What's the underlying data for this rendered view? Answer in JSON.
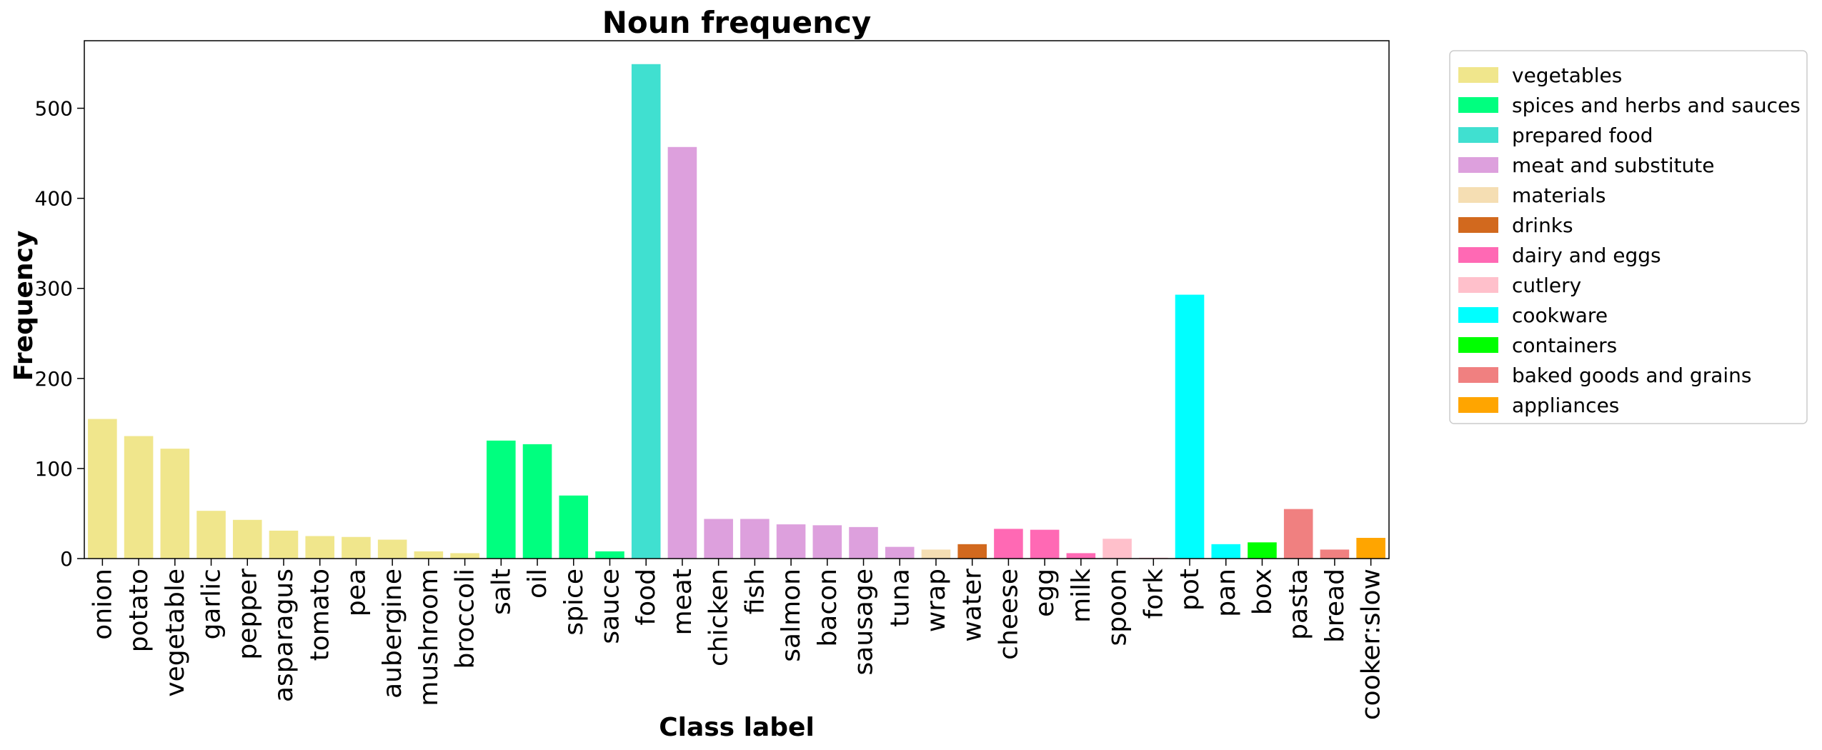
{
  "chart_data": {
    "type": "bar",
    "title": "Noun frequency",
    "xlabel": "Class label",
    "ylabel": "Frequency",
    "ylim": [
      0,
      575
    ],
    "yticks": [
      0,
      100,
      200,
      300,
      400,
      500
    ],
    "grid": false,
    "legend_position": "outside-top-right",
    "categories": [
      "onion",
      "potato",
      "vegetable",
      "garlic",
      "pepper",
      "asparagus",
      "tomato",
      "pea",
      "aubergine",
      "mushroom",
      "broccoli",
      "salt",
      "oil",
      "spice",
      "sauce",
      "food",
      "meat",
      "chicken",
      "fish",
      "salmon",
      "bacon",
      "sausage",
      "tuna",
      "wrap",
      "water",
      "cheese",
      "egg",
      "milk",
      "spoon",
      "fork",
      "pot",
      "pan",
      "box",
      "pasta",
      "bread",
      "cooker:slow"
    ],
    "values": [
      155,
      136,
      122,
      53,
      43,
      31,
      25,
      24,
      21,
      8,
      6,
      131,
      127,
      70,
      8,
      549,
      457,
      44,
      44,
      38,
      37,
      35,
      13,
      10,
      16,
      33,
      32,
      6,
      22,
      1,
      293,
      16,
      18,
      55,
      10,
      23
    ],
    "bar_groups": [
      "vegetables",
      "vegetables",
      "vegetables",
      "vegetables",
      "vegetables",
      "vegetables",
      "vegetables",
      "vegetables",
      "vegetables",
      "vegetables",
      "vegetables",
      "spices and herbs and sauces",
      "spices and herbs and sauces",
      "spices and herbs and sauces",
      "spices and herbs and sauces",
      "prepared food",
      "meat and substitute",
      "meat and substitute",
      "meat and substitute",
      "meat and substitute",
      "meat and substitute",
      "meat and substitute",
      "meat and substitute",
      "materials",
      "drinks",
      "dairy and eggs",
      "dairy and eggs",
      "dairy and eggs",
      "cutlery",
      "cutlery",
      "cookware",
      "cookware",
      "containers",
      "baked goods and grains",
      "baked goods and grains",
      "appliances"
    ],
    "legend": [
      {
        "label": "vegetables",
        "color": "#f0e68c"
      },
      {
        "label": "spices and herbs and sauces",
        "color": "#00ff7f"
      },
      {
        "label": "prepared food",
        "color": "#40e0d0"
      },
      {
        "label": "meat and substitute",
        "color": "#dda0dd"
      },
      {
        "label": "materials",
        "color": "#f5deb3"
      },
      {
        "label": "drinks",
        "color": "#d2691e"
      },
      {
        "label": "dairy and eggs",
        "color": "#ff69b4"
      },
      {
        "label": "cutlery",
        "color": "#ffc0cb"
      },
      {
        "label": "cookware",
        "color": "#00ffff"
      },
      {
        "label": "containers",
        "color": "#00ff00"
      },
      {
        "label": "baked goods and grains",
        "color": "#f08080"
      },
      {
        "label": "appliances",
        "color": "#ffa500"
      }
    ]
  }
}
